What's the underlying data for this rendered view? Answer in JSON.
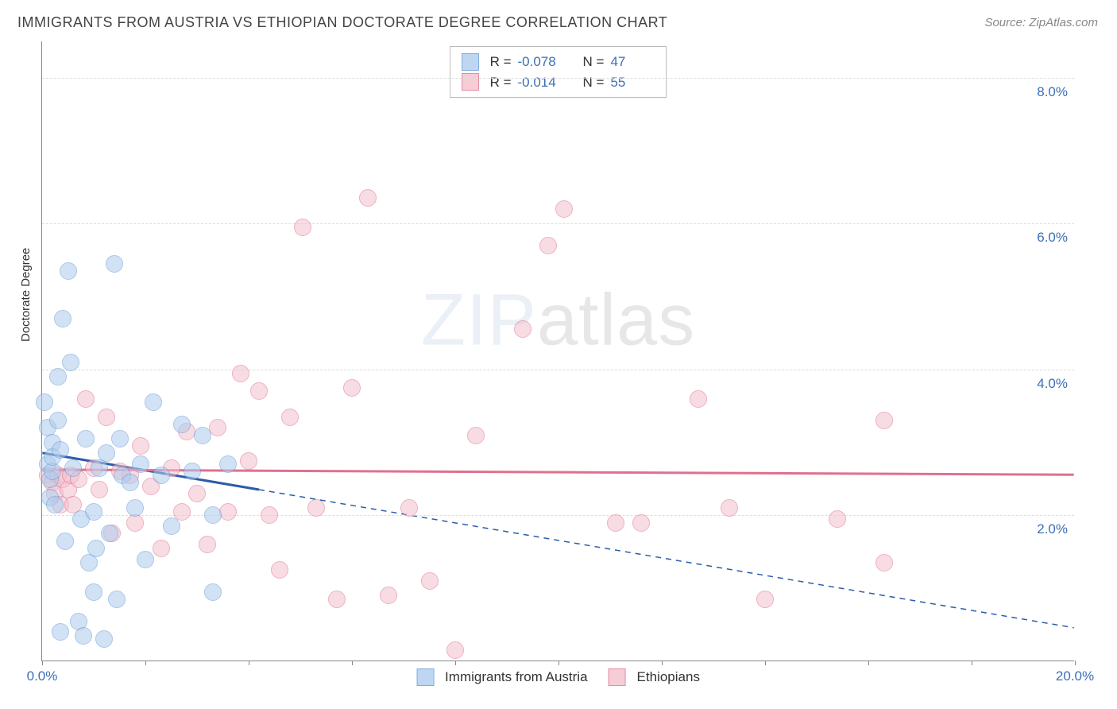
{
  "title": "IMMIGRANTS FROM AUSTRIA VS ETHIOPIAN DOCTORATE DEGREE CORRELATION CHART",
  "source": "Source: ZipAtlas.com",
  "ylabel": "Doctorate Degree",
  "watermark_a": "ZIP",
  "watermark_b": "atlas",
  "chart": {
    "type": "scatter",
    "xlim": [
      0,
      20
    ],
    "ylim": [
      0,
      8.5
    ],
    "x_ticks": [
      0,
      2,
      4,
      6,
      8,
      10,
      12,
      14,
      16,
      18,
      20
    ],
    "x_tick_labels_shown": {
      "0": "0.0%",
      "20": "20.0%"
    },
    "y_gridlines": [
      2,
      4,
      6,
      8
    ],
    "y_tick_labels": {
      "2": "2.0%",
      "4": "4.0%",
      "6": "6.0%",
      "8": "8.0%"
    },
    "background_color": "#ffffff",
    "grid_color": "#dddddd",
    "axis_color": "#888888",
    "tick_label_color": "#3b6fb6",
    "tick_fontsize": 17,
    "title_fontsize": 18,
    "title_color": "#444444",
    "point_radius": 11,
    "series": [
      {
        "name": "Immigrants from Austria",
        "fill": "#aeccee",
        "stroke": "#6598d4",
        "fill_opacity": 0.55,
        "R": "-0.078",
        "N": "47",
        "trend": {
          "x1": 0,
          "y1": 2.85,
          "x2": 20,
          "y2": 0.45,
          "solid_until_x": 4.2,
          "color": "#2a5da8",
          "width": 3
        },
        "points": [
          [
            0.05,
            3.55
          ],
          [
            0.1,
            3.2
          ],
          [
            0.1,
            2.7
          ],
          [
            0.15,
            2.5
          ],
          [
            0.15,
            2.25
          ],
          [
            0.2,
            3.0
          ],
          [
            0.2,
            2.6
          ],
          [
            0.2,
            2.8
          ],
          [
            0.25,
            2.15
          ],
          [
            0.3,
            3.9
          ],
          [
            0.3,
            3.3
          ],
          [
            0.35,
            2.9
          ],
          [
            0.35,
            0.4
          ],
          [
            0.4,
            4.7
          ],
          [
            0.45,
            1.65
          ],
          [
            0.5,
            5.35
          ],
          [
            0.55,
            4.1
          ],
          [
            0.6,
            2.65
          ],
          [
            0.7,
            0.55
          ],
          [
            0.75,
            1.95
          ],
          [
            0.8,
            0.35
          ],
          [
            0.85,
            3.05
          ],
          [
            0.9,
            1.35
          ],
          [
            1.0,
            2.05
          ],
          [
            1.0,
            0.95
          ],
          [
            1.05,
            1.55
          ],
          [
            1.1,
            2.65
          ],
          [
            1.2,
            0.3
          ],
          [
            1.25,
            2.85
          ],
          [
            1.3,
            1.75
          ],
          [
            1.4,
            5.45
          ],
          [
            1.45,
            0.85
          ],
          [
            1.5,
            3.05
          ],
          [
            1.55,
            2.55
          ],
          [
            1.7,
            2.45
          ],
          [
            1.8,
            2.1
          ],
          [
            1.9,
            2.7
          ],
          [
            2.0,
            1.4
          ],
          [
            2.15,
            3.55
          ],
          [
            2.3,
            2.55
          ],
          [
            2.5,
            1.85
          ],
          [
            2.7,
            3.25
          ],
          [
            2.9,
            2.6
          ],
          [
            3.1,
            3.1
          ],
          [
            3.3,
            0.95
          ],
          [
            3.6,
            2.7
          ],
          [
            3.3,
            2.0
          ]
        ]
      },
      {
        "name": "Ethiopians",
        "fill": "#f4c0cd",
        "stroke": "#e0708f",
        "fill_opacity": 0.55,
        "R": "-0.014",
        "N": "55",
        "trend": {
          "x1": 0,
          "y1": 2.62,
          "x2": 20,
          "y2": 2.55,
          "solid_until_x": 20,
          "color": "#e0708f",
          "width": 3
        },
        "points": [
          [
            0.1,
            2.55
          ],
          [
            0.2,
            2.45
          ],
          [
            0.25,
            2.3
          ],
          [
            0.3,
            2.55
          ],
          [
            0.35,
            2.15
          ],
          [
            0.4,
            2.5
          ],
          [
            0.5,
            2.35
          ],
          [
            0.55,
            2.55
          ],
          [
            0.6,
            2.15
          ],
          [
            0.7,
            2.5
          ],
          [
            0.85,
            3.6
          ],
          [
            1.0,
            2.65
          ],
          [
            1.1,
            2.35
          ],
          [
            1.25,
            3.35
          ],
          [
            1.35,
            1.75
          ],
          [
            1.5,
            2.6
          ],
          [
            1.7,
            2.55
          ],
          [
            1.8,
            1.9
          ],
          [
            1.9,
            2.95
          ],
          [
            2.1,
            2.4
          ],
          [
            2.3,
            1.55
          ],
          [
            2.5,
            2.65
          ],
          [
            2.7,
            2.05
          ],
          [
            2.8,
            3.15
          ],
          [
            3.0,
            2.3
          ],
          [
            3.2,
            1.6
          ],
          [
            3.4,
            3.2
          ],
          [
            3.6,
            2.05
          ],
          [
            3.85,
            3.95
          ],
          [
            4.0,
            2.75
          ],
          [
            4.2,
            3.7
          ],
          [
            4.4,
            2.0
          ],
          [
            4.6,
            1.25
          ],
          [
            4.8,
            3.35
          ],
          [
            5.05,
            5.95
          ],
          [
            5.3,
            2.1
          ],
          [
            5.7,
            0.85
          ],
          [
            6.0,
            3.75
          ],
          [
            6.3,
            6.35
          ],
          [
            6.7,
            0.9
          ],
          [
            7.1,
            2.1
          ],
          [
            7.5,
            1.1
          ],
          [
            8.0,
            0.15
          ],
          [
            8.4,
            3.1
          ],
          [
            9.3,
            4.55
          ],
          [
            9.8,
            5.7
          ],
          [
            10.1,
            6.2
          ],
          [
            11.1,
            1.9
          ],
          [
            11.6,
            1.9
          ],
          [
            12.7,
            3.6
          ],
          [
            14.0,
            0.85
          ],
          [
            15.4,
            1.95
          ],
          [
            16.3,
            1.35
          ],
          [
            16.3,
            3.3
          ],
          [
            13.3,
            2.1
          ]
        ]
      }
    ],
    "stats_legend": {
      "border_color": "#bbbbbb",
      "label_R": "R =",
      "label_N": "N ="
    },
    "bottom_legend": {
      "items": [
        "Immigrants from Austria",
        "Ethiopians"
      ]
    }
  }
}
